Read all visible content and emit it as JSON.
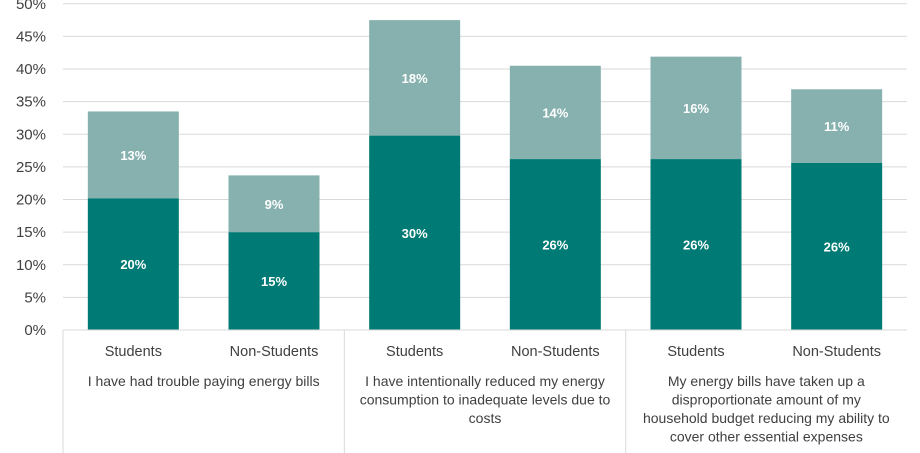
{
  "chart_data": {
    "type": "bar",
    "stacked": true,
    "ylim": [
      0,
      50
    ],
    "yticks": [
      "0%",
      "5%",
      "10%",
      "15%",
      "20%",
      "25%",
      "30%",
      "35%",
      "40%",
      "45%",
      "50%"
    ],
    "y_unit": "%",
    "grid": true,
    "legend": "none",
    "colors": [
      "#007A74",
      "#86B1AE"
    ],
    "categories": [
      "Students",
      "Non-Students",
      "Students",
      "Non-Students",
      "Students",
      "Non-Students"
    ],
    "groups": [
      {
        "label": [
          "I have had trouble paying energy bills"
        ],
        "span": 2
      },
      {
        "label": [
          "I have intentionally reduced my energy",
          "consumption to inadequate levels due to",
          "costs"
        ],
        "span": 2
      },
      {
        "label": [
          "My energy bills have taken up a",
          "disproportionate amount of my",
          "household budget reducing my ability to",
          "cover other essential expenses"
        ],
        "span": 2
      }
    ],
    "series": [
      {
        "values": [
          20.2,
          15.0,
          29.8,
          26.2,
          26.2,
          25.6
        ],
        "labels": [
          "20%",
          "15%",
          "30%",
          "26%",
          "26%",
          "26%"
        ]
      },
      {
        "values": [
          13.3,
          8.7,
          17.7,
          14.3,
          15.7,
          11.3
        ],
        "labels": [
          "13%",
          "9%",
          "18%",
          "14%",
          "16%",
          "11%"
        ]
      }
    ]
  }
}
